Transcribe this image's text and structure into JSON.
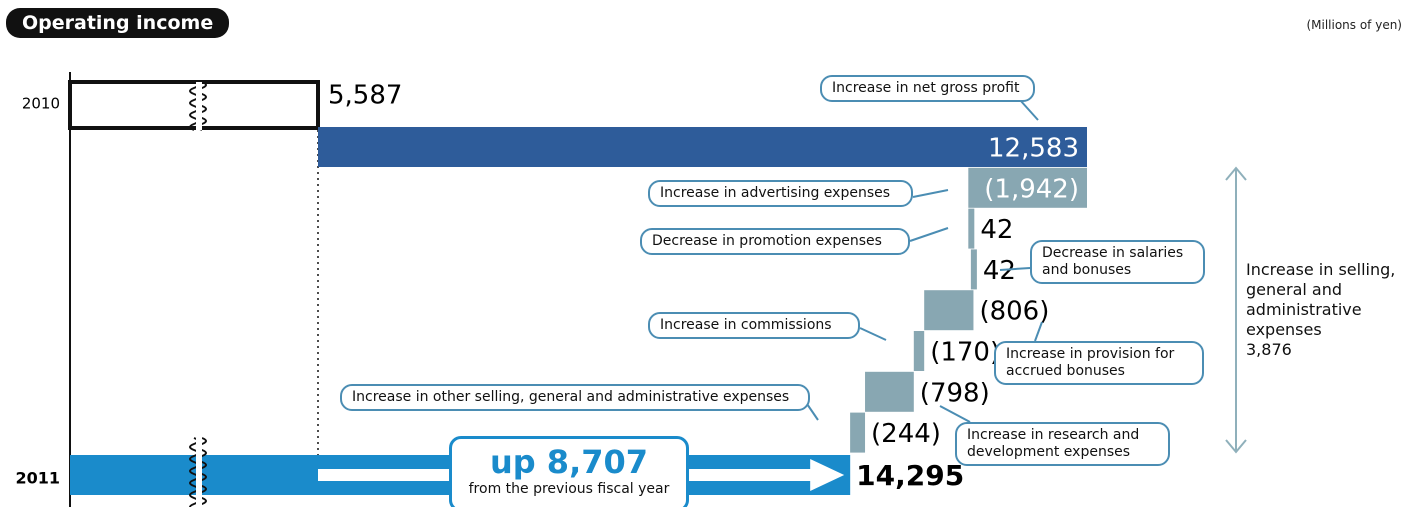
{
  "chart_data": {
    "type": "waterfall",
    "title": "Operating income",
    "unit_label": "(Millions of yen)",
    "categories": [
      "2010",
      "Increase in net gross profit",
      "Increase in advertising expenses",
      "Decrease in promotion expenses",
      "Decrease in salaries and bonuses",
      "Increase in provision for accrued bonuses",
      "Increase in commissions",
      "Increase in research and development expenses",
      "Increase in other selling, general and administrative expenses",
      "2011"
    ],
    "measures": [
      "absolute",
      "relative",
      "relative",
      "relative",
      "relative",
      "relative",
      "relative",
      "relative",
      "relative",
      "total"
    ],
    "values": [
      5587,
      12583,
      -1942,
      42,
      42,
      -806,
      -170,
      -798,
      -244,
      14295
    ],
    "value_labels": [
      "5,587",
      "12,583",
      "(1,942)",
      "42",
      "42",
      "(806)",
      "(170)",
      "(798)",
      "(244)",
      "14,295"
    ],
    "colors": {
      "base": "#ffffff",
      "increase": "#2e5c9a",
      "step": "#88a7b2",
      "total": "#1a8bcb"
    },
    "difference_label": "up 8,707",
    "difference_note": "from the previous fiscal year",
    "bracket_label": "Increase in selling, general and administrative expenses",
    "bracket_value": {
      "value": 3876,
      "label": "3,876"
    }
  }
}
